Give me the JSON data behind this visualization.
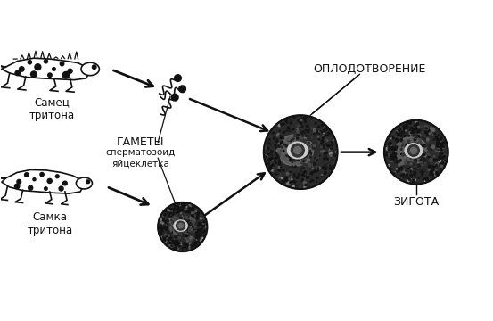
{
  "background_color": "#ffffff",
  "labels": {
    "male": "Самец\nтритона",
    "female": "Самка\nтритона",
    "gametes_title": "ГАМЕТЫ",
    "gametes_sub": "сперматозоид\nяйцеклетка",
    "fertilization": "ОПЛОДОТВОРЕНИЕ",
    "zygote": "ЗИГОТА"
  },
  "figsize": [
    5.53,
    3.6
  ],
  "dpi": 100
}
